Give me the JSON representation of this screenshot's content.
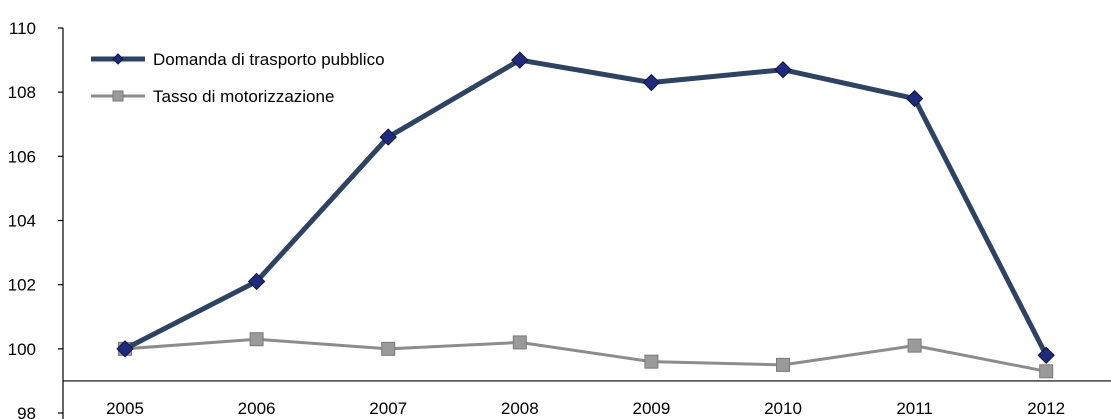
{
  "chart_data": {
    "type": "line",
    "title": "",
    "xlabel": "",
    "ylabel": "",
    "categories": [
      "2005",
      "2006",
      "2007",
      "2008",
      "2009",
      "2010",
      "2011",
      "2012"
    ],
    "ylim": [
      98,
      110
    ],
    "yticks": [
      98,
      100,
      102,
      104,
      106,
      108,
      110
    ],
    "x_axis_crosses_at": 99,
    "grid": false,
    "legend_position": "top-left",
    "series": [
      {
        "name": "Domanda di trasporto pubblico",
        "values": [
          100.0,
          102.1,
          106.6,
          109.0,
          108.3,
          108.7,
          107.8,
          99.8
        ],
        "color": "#2e4262",
        "marker": "diamond",
        "marker_color": "#1f2b7a"
      },
      {
        "name": "Tasso di motorizzazione",
        "values": [
          100.0,
          100.3,
          100.0,
          100.2,
          99.6,
          99.5,
          100.1,
          99.3
        ],
        "color": "#8c8c8c",
        "marker": "square",
        "marker_color": "#9a9a9a"
      }
    ]
  }
}
